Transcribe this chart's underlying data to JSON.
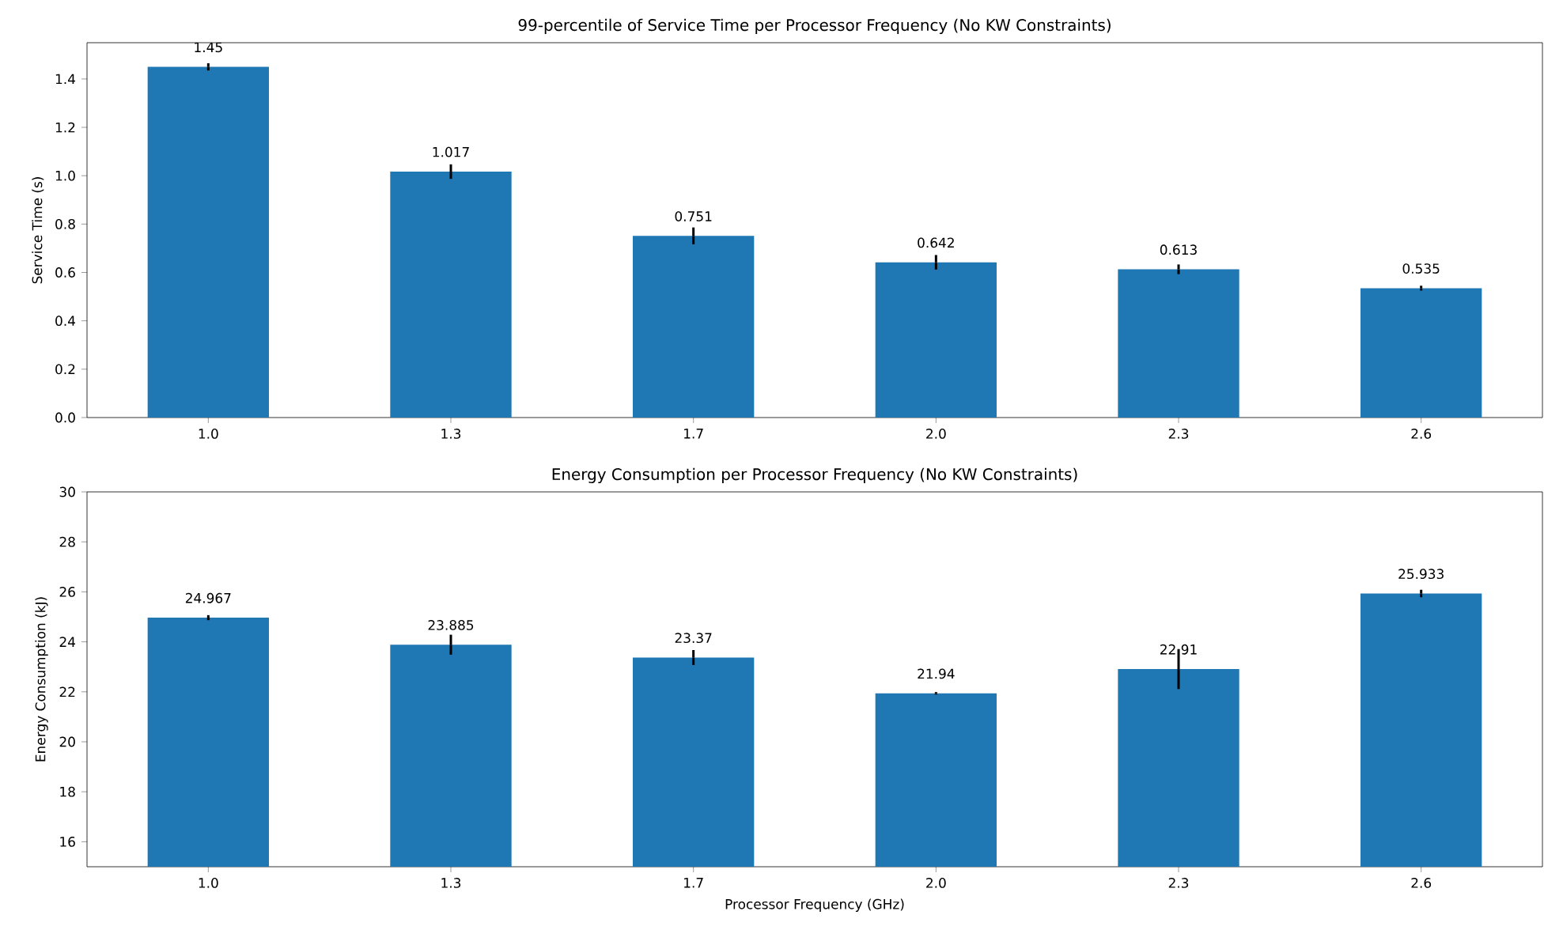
{
  "chart_data": [
    {
      "type": "bar",
      "title": "99-percentile of Service Time per Processor Frequency (No KW Constraints)",
      "ylabel": "Service Time (s)",
      "categories": [
        "1.0",
        "1.3",
        "1.7",
        "2.0",
        "2.3",
        "2.6"
      ],
      "color": "#1f77b4",
      "values": [
        1.45,
        1.017,
        0.751,
        0.642,
        0.613,
        0.535
      ],
      "errors": [
        0.015,
        0.03,
        0.035,
        0.03,
        0.02,
        0.01
      ],
      "ylim": [
        0,
        1.55
      ],
      "yticks": [
        {
          "value": 0,
          "label": "0.0"
        },
        {
          "value": 0.2,
          "label": "0.2"
        },
        {
          "value": 0.4,
          "label": "0.4"
        },
        {
          "value": 0.6,
          "label": "0.6"
        },
        {
          "value": 0.8,
          "label": "0.8"
        },
        {
          "value": 1.0,
          "label": "1.0"
        },
        {
          "value": 1.2,
          "label": "1.2"
        },
        {
          "value": 1.4,
          "label": "1.4"
        }
      ],
      "data_labels": true
    },
    {
      "type": "bar",
      "title": "Energy Consumption per Processor Frequency (No KW Constraints)",
      "xlabel": "Processor Frequency (GHz)",
      "ylabel": "Energy Consumption (kJ)",
      "categories": [
        "1.0",
        "1.3",
        "1.7",
        "2.0",
        "2.3",
        "2.6"
      ],
      "color": "#1f77b4",
      "values": [
        24.967,
        23.885,
        23.37,
        21.94,
        22.91,
        25.933
      ],
      "errors": [
        0.1,
        0.4,
        0.3,
        0.05,
        0.8,
        0.15
      ],
      "ylim": [
        15,
        30
      ],
      "yticks": [
        16,
        18,
        20,
        22,
        24,
        26,
        28,
        30
      ],
      "data_labels": true
    }
  ]
}
